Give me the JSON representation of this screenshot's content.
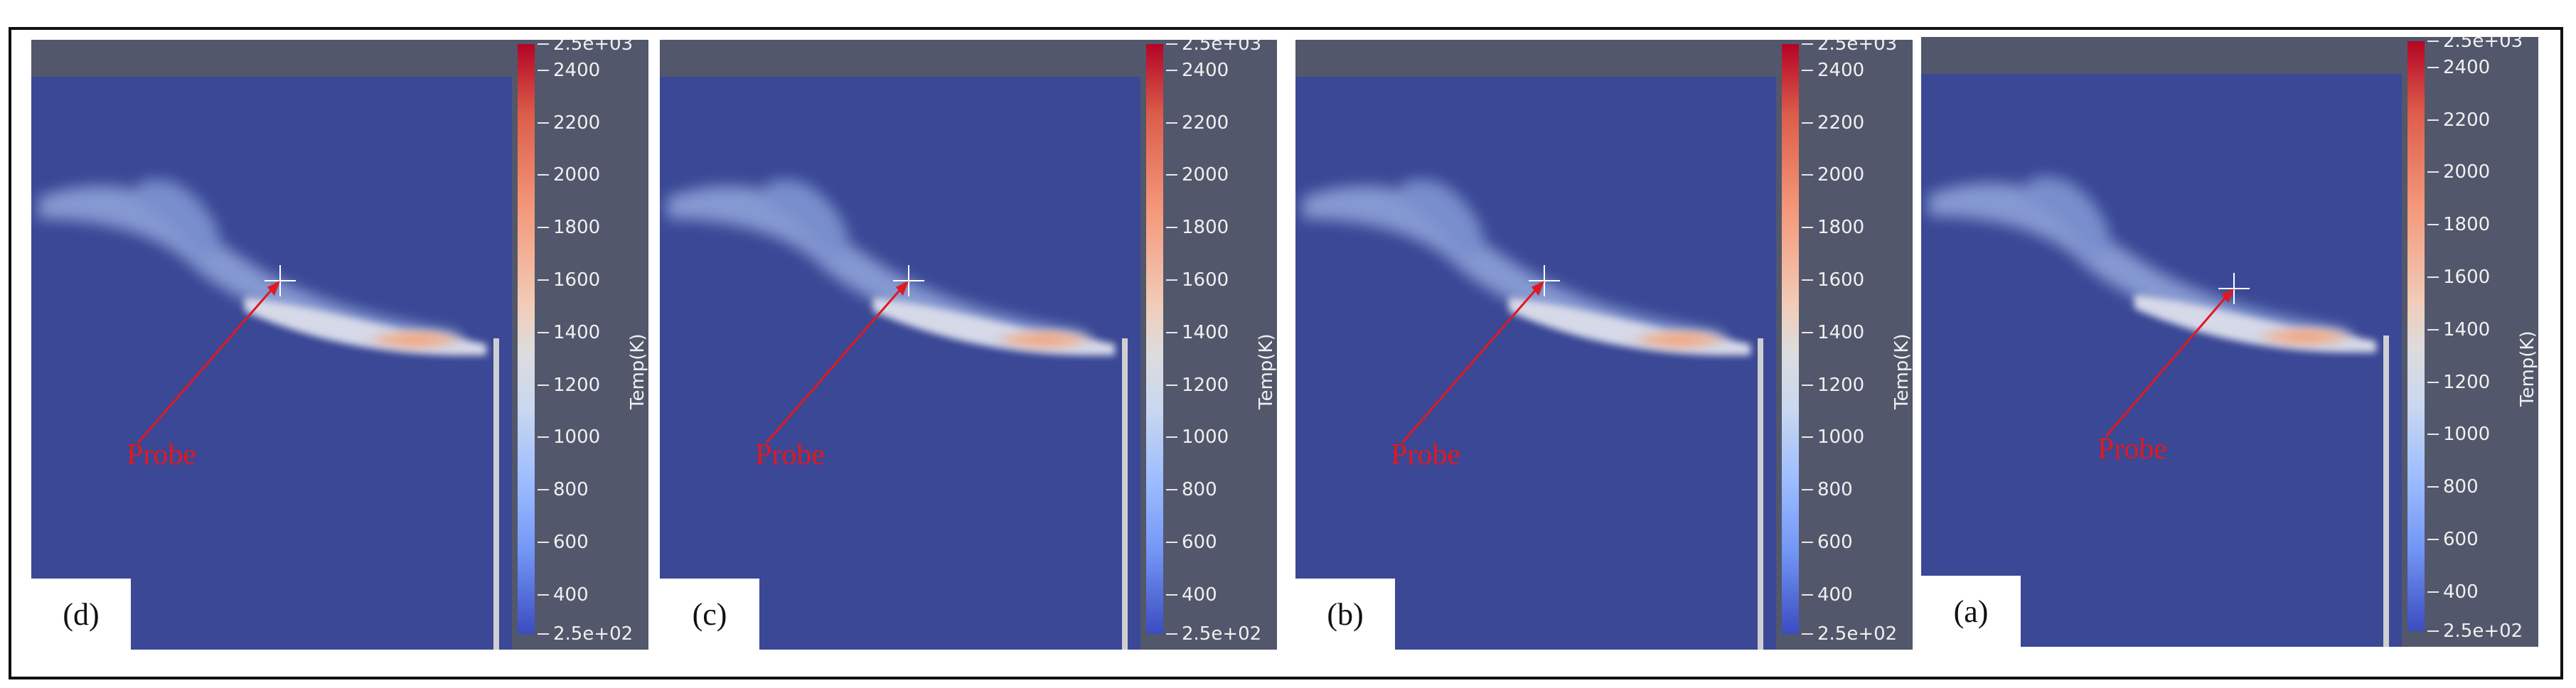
{
  "panels": [
    {
      "label": "(d)",
      "probe_label": "Probe",
      "colorbar_title": "Temp(K)"
    },
    {
      "label": "(c)",
      "probe_label": "Probe",
      "colorbar_title": "Temp(K)"
    },
    {
      "label": "(b)",
      "probe_label": "Probe",
      "colorbar_title": "Temp(K)"
    },
    {
      "label": "(a)",
      "probe_label": "Probe",
      "colorbar_title": "Temp(K)"
    }
  ],
  "colorbar": {
    "max_label": "2.5e+03",
    "min_label": "2.5e+02",
    "ticks": [
      "2400",
      "2200",
      "2000",
      "1800",
      "1600",
      "1400",
      "1200",
      "1000",
      "800",
      "600",
      "400"
    ],
    "range": [
      250,
      2500
    ],
    "colormap": "cool-to-warm"
  },
  "colors": {
    "background_field": "#3a4895",
    "panel_frame": "#52576b",
    "probe_arrow": "#e0191f"
  }
}
